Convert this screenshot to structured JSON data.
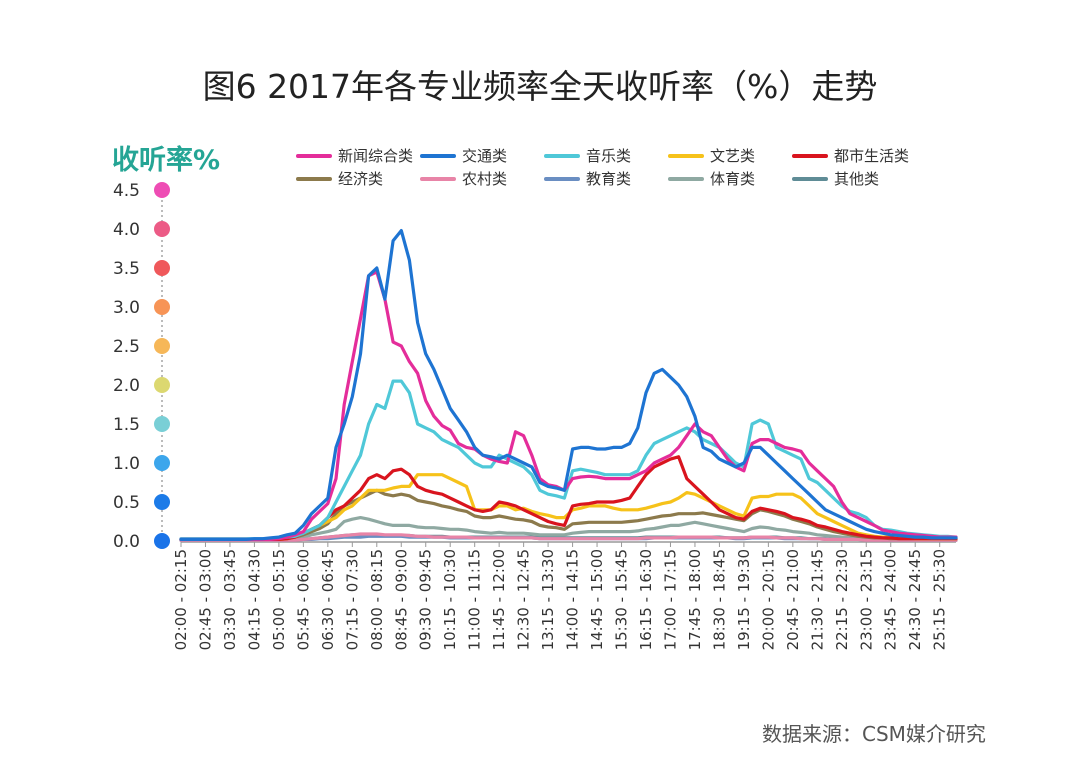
{
  "title": "图6 2017年各专业频率全天收听率（%）走势",
  "source": "数据来源：CSM媒介研究",
  "chart_data": {
    "type": "line",
    "ylabel": "收听率%",
    "ylim": [
      0,
      4.5
    ],
    "yticks": [
      "0.0",
      "0.5",
      "1.0",
      "1.5",
      "2.0",
      "2.5",
      "3.0",
      "3.5",
      "4.0",
      "4.5"
    ],
    "ytick_colors": [
      "#1a73e8",
      "#1c7be8",
      "#3ca6ec",
      "#79cfd6",
      "#dcd870",
      "#f6b758",
      "#f79456",
      "#ef585b",
      "#ec5b86",
      "#ee4db4"
    ],
    "xticks": [
      "02:00 - 02:15",
      "02:45 - 03:00",
      "03:30 - 03:45",
      "04:15 - 04:30",
      "05:00 - 05:15",
      "05:45 - 06:00",
      "06:30 - 06:45",
      "07:15 - 07:30",
      "08:00 - 08:15",
      "08:45 - 09:00",
      "09:30 - 09:45",
      "10:15 - 10:30",
      "11:00 - 11:15",
      "11:45 - 12:00",
      "12:30 - 12:45",
      "13:15 - 13:30",
      "14:00 - 14:15",
      "14:45 - 15:00",
      "15:30 - 15:45",
      "16:15 - 16:30",
      "17:00 - 17:15",
      "17:45 - 18:00",
      "18:30 - 18:45",
      "19:15 - 19:30",
      "20:00 - 20:15",
      "20:45 - 21:00",
      "21:30 - 21:45",
      "22:15 - 22:30",
      "23:00 - 23:15",
      "23:45 - 24:00",
      "24:30 - 24:45",
      "25:15 - 25:30"
    ],
    "x_description": "96 quarter-hour slots from 02:00 to 26:00",
    "series": [
      {
        "name": "新闻综合类",
        "color": "#e42d9a",
        "values": [
          0.02,
          0.02,
          0.02,
          0.02,
          0.02,
          0.02,
          0.02,
          0.02,
          0.02,
          0.02,
          0.02,
          0.02,
          0.03,
          0.05,
          0.08,
          0.12,
          0.28,
          0.38,
          0.48,
          0.8,
          1.75,
          2.3,
          2.85,
          3.4,
          3.45,
          3.1,
          2.55,
          2.5,
          2.3,
          2.15,
          1.8,
          1.6,
          1.48,
          1.42,
          1.25,
          1.2,
          1.18,
          1.1,
          1.05,
          1.02,
          1.0,
          1.4,
          1.35,
          1.1,
          0.8,
          0.72,
          0.7,
          0.65,
          0.8,
          0.82,
          0.83,
          0.82,
          0.8,
          0.8,
          0.8,
          0.8,
          0.85,
          0.9,
          1.0,
          1.05,
          1.1,
          1.2,
          1.35,
          1.5,
          1.4,
          1.35,
          1.2,
          1.05,
          0.95,
          0.9,
          1.25,
          1.3,
          1.3,
          1.25,
          1.2,
          1.18,
          1.15,
          1.0,
          0.9,
          0.8,
          0.7,
          0.5,
          0.35,
          0.3,
          0.25,
          0.2,
          0.14,
          0.12,
          0.1,
          0.09,
          0.08,
          0.07,
          0.06,
          0.05,
          0.05,
          0.05
        ]
      },
      {
        "name": "交通类",
        "color": "#1e74d2",
        "values": [
          0.02,
          0.02,
          0.02,
          0.02,
          0.02,
          0.02,
          0.02,
          0.02,
          0.02,
          0.03,
          0.03,
          0.04,
          0.05,
          0.08,
          0.1,
          0.2,
          0.35,
          0.45,
          0.55,
          1.2,
          1.5,
          1.85,
          2.4,
          3.4,
          3.5,
          3.1,
          3.85,
          3.98,
          3.6,
          2.8,
          2.4,
          2.2,
          1.95,
          1.7,
          1.55,
          1.4,
          1.2,
          1.1,
          1.08,
          1.05,
          1.1,
          1.05,
          1.0,
          0.95,
          0.75,
          0.7,
          0.68,
          0.65,
          1.18,
          1.2,
          1.2,
          1.18,
          1.18,
          1.2,
          1.2,
          1.25,
          1.45,
          1.9,
          2.15,
          2.2,
          2.1,
          2.0,
          1.85,
          1.6,
          1.2,
          1.15,
          1.05,
          1.0,
          0.95,
          1.0,
          1.2,
          1.2,
          1.1,
          1.0,
          0.9,
          0.8,
          0.7,
          0.6,
          0.5,
          0.4,
          0.35,
          0.3,
          0.25,
          0.2,
          0.15,
          0.12,
          0.1,
          0.08,
          0.07,
          0.06,
          0.05,
          0.05,
          0.04,
          0.04,
          0.04,
          0.04
        ]
      },
      {
        "name": "音乐类",
        "color": "#4fc8d8",
        "values": [
          0.03,
          0.03,
          0.03,
          0.03,
          0.03,
          0.03,
          0.03,
          0.03,
          0.03,
          0.03,
          0.03,
          0.03,
          0.04,
          0.05,
          0.06,
          0.1,
          0.15,
          0.2,
          0.3,
          0.5,
          0.7,
          0.9,
          1.1,
          1.5,
          1.75,
          1.7,
          2.05,
          2.05,
          1.9,
          1.5,
          1.45,
          1.4,
          1.3,
          1.25,
          1.2,
          1.1,
          1.0,
          0.95,
          0.95,
          1.1,
          1.05,
          1.0,
          0.95,
          0.85,
          0.65,
          0.6,
          0.58,
          0.55,
          0.9,
          0.92,
          0.9,
          0.88,
          0.85,
          0.85,
          0.85,
          0.85,
          0.9,
          1.1,
          1.25,
          1.3,
          1.35,
          1.4,
          1.45,
          1.4,
          1.3,
          1.25,
          1.2,
          1.1,
          1.0,
          0.95,
          1.5,
          1.55,
          1.5,
          1.2,
          1.15,
          1.1,
          1.05,
          0.8,
          0.75,
          0.65,
          0.55,
          0.45,
          0.38,
          0.35,
          0.3,
          0.2,
          0.15,
          0.14,
          0.12,
          0.1,
          0.09,
          0.08,
          0.07,
          0.06,
          0.06,
          0.05
        ]
      },
      {
        "name": "文艺类",
        "color": "#f6c21a",
        "values": [
          0.02,
          0.02,
          0.02,
          0.02,
          0.02,
          0.02,
          0.02,
          0.02,
          0.02,
          0.02,
          0.02,
          0.02,
          0.02,
          0.03,
          0.05,
          0.1,
          0.15,
          0.2,
          0.25,
          0.3,
          0.4,
          0.45,
          0.55,
          0.65,
          0.65,
          0.65,
          0.68,
          0.7,
          0.7,
          0.85,
          0.85,
          0.85,
          0.85,
          0.8,
          0.75,
          0.7,
          0.4,
          0.4,
          0.4,
          0.45,
          0.45,
          0.4,
          0.42,
          0.38,
          0.35,
          0.33,
          0.3,
          0.3,
          0.4,
          0.42,
          0.45,
          0.45,
          0.45,
          0.42,
          0.4,
          0.4,
          0.4,
          0.42,
          0.45,
          0.48,
          0.5,
          0.55,
          0.62,
          0.6,
          0.55,
          0.5,
          0.45,
          0.4,
          0.35,
          0.32,
          0.55,
          0.57,
          0.57,
          0.6,
          0.6,
          0.6,
          0.55,
          0.45,
          0.35,
          0.3,
          0.25,
          0.2,
          0.15,
          0.1,
          0.08,
          0.06,
          0.05,
          0.05,
          0.04,
          0.04,
          0.03,
          0.03,
          0.03,
          0.03,
          0.03,
          0.03
        ]
      },
      {
        "name": "都市生活类",
        "color": "#d9141e",
        "values": [
          0.02,
          0.02,
          0.02,
          0.02,
          0.02,
          0.02,
          0.02,
          0.02,
          0.02,
          0.02,
          0.02,
          0.02,
          0.02,
          0.03,
          0.05,
          0.1,
          0.15,
          0.2,
          0.3,
          0.4,
          0.45,
          0.55,
          0.65,
          0.8,
          0.85,
          0.8,
          0.9,
          0.92,
          0.85,
          0.7,
          0.65,
          0.62,
          0.6,
          0.55,
          0.5,
          0.45,
          0.4,
          0.38,
          0.4,
          0.5,
          0.48,
          0.45,
          0.4,
          0.35,
          0.3,
          0.25,
          0.22,
          0.2,
          0.45,
          0.47,
          0.48,
          0.5,
          0.5,
          0.5,
          0.52,
          0.55,
          0.7,
          0.85,
          0.95,
          1.0,
          1.05,
          1.08,
          0.8,
          0.7,
          0.6,
          0.5,
          0.4,
          0.35,
          0.3,
          0.28,
          0.38,
          0.42,
          0.4,
          0.38,
          0.35,
          0.3,
          0.28,
          0.25,
          0.2,
          0.18,
          0.15,
          0.12,
          0.1,
          0.08,
          0.06,
          0.05,
          0.04,
          0.04,
          0.03,
          0.03,
          0.03,
          0.03,
          0.03,
          0.03,
          0.03,
          0.03
        ]
      },
      {
        "name": "经济类",
        "color": "#8c7a4c",
        "values": [
          0.02,
          0.02,
          0.02,
          0.02,
          0.02,
          0.02,
          0.02,
          0.02,
          0.02,
          0.02,
          0.02,
          0.02,
          0.02,
          0.03,
          0.05,
          0.08,
          0.12,
          0.16,
          0.22,
          0.35,
          0.45,
          0.5,
          0.55,
          0.6,
          0.65,
          0.6,
          0.58,
          0.6,
          0.58,
          0.52,
          0.5,
          0.48,
          0.45,
          0.43,
          0.4,
          0.38,
          0.32,
          0.3,
          0.3,
          0.32,
          0.3,
          0.28,
          0.27,
          0.25,
          0.2,
          0.18,
          0.17,
          0.15,
          0.22,
          0.23,
          0.24,
          0.24,
          0.24,
          0.24,
          0.24,
          0.25,
          0.26,
          0.28,
          0.3,
          0.32,
          0.33,
          0.35,
          0.35,
          0.35,
          0.36,
          0.34,
          0.32,
          0.3,
          0.28,
          0.26,
          0.35,
          0.4,
          0.38,
          0.35,
          0.32,
          0.28,
          0.25,
          0.22,
          0.18,
          0.15,
          0.12,
          0.1,
          0.08,
          0.06,
          0.05,
          0.04,
          0.04,
          0.03,
          0.03,
          0.03,
          0.03,
          0.03,
          0.03,
          0.03,
          0.03,
          0.03
        ]
      },
      {
        "name": "农村类",
        "color": "#e884a7",
        "values": [
          0.01,
          0.01,
          0.01,
          0.01,
          0.01,
          0.01,
          0.01,
          0.01,
          0.01,
          0.01,
          0.01,
          0.01,
          0.01,
          0.01,
          0.01,
          0.02,
          0.03,
          0.04,
          0.05,
          0.06,
          0.07,
          0.08,
          0.09,
          0.09,
          0.09,
          0.08,
          0.08,
          0.08,
          0.07,
          0.06,
          0.06,
          0.05,
          0.05,
          0.05,
          0.05,
          0.05,
          0.04,
          0.04,
          0.04,
          0.04,
          0.04,
          0.04,
          0.04,
          0.04,
          0.03,
          0.03,
          0.03,
          0.03,
          0.03,
          0.03,
          0.03,
          0.03,
          0.03,
          0.03,
          0.03,
          0.03,
          0.03,
          0.04,
          0.04,
          0.04,
          0.04,
          0.05,
          0.05,
          0.05,
          0.05,
          0.05,
          0.04,
          0.04,
          0.04,
          0.04,
          0.05,
          0.05,
          0.05,
          0.04,
          0.04,
          0.04,
          0.03,
          0.03,
          0.03,
          0.02,
          0.02,
          0.02,
          0.02,
          0.02,
          0.01,
          0.01,
          0.01,
          0.01,
          0.01,
          0.01,
          0.01,
          0.01,
          0.01,
          0.01,
          0.01,
          0.01
        ]
      },
      {
        "name": "教育类",
        "color": "#6a8ec2",
        "values": [
          0.01,
          0.01,
          0.01,
          0.01,
          0.01,
          0.01,
          0.01,
          0.01,
          0.01,
          0.01,
          0.01,
          0.01,
          0.01,
          0.01,
          0.01,
          0.02,
          0.02,
          0.03,
          0.03,
          0.04,
          0.05,
          0.05,
          0.05,
          0.06,
          0.06,
          0.06,
          0.06,
          0.06,
          0.05,
          0.05,
          0.05,
          0.05,
          0.05,
          0.04,
          0.04,
          0.04,
          0.04,
          0.04,
          0.04,
          0.04,
          0.04,
          0.04,
          0.04,
          0.04,
          0.03,
          0.03,
          0.03,
          0.03,
          0.03,
          0.03,
          0.03,
          0.03,
          0.03,
          0.03,
          0.03,
          0.03,
          0.03,
          0.03,
          0.04,
          0.04,
          0.04,
          0.04,
          0.04,
          0.04,
          0.04,
          0.04,
          0.04,
          0.04,
          0.03,
          0.03,
          0.04,
          0.04,
          0.04,
          0.04,
          0.03,
          0.03,
          0.03,
          0.03,
          0.03,
          0.02,
          0.02,
          0.02,
          0.02,
          0.02,
          0.01,
          0.01,
          0.01,
          0.01,
          0.01,
          0.01,
          0.01,
          0.01,
          0.01,
          0.01,
          0.01,
          0.01
        ]
      },
      {
        "name": "体育类",
        "color": "#8fa9a2",
        "values": [
          0.02,
          0.02,
          0.02,
          0.02,
          0.02,
          0.02,
          0.02,
          0.02,
          0.02,
          0.02,
          0.02,
          0.02,
          0.02,
          0.02,
          0.03,
          0.05,
          0.08,
          0.1,
          0.12,
          0.15,
          0.25,
          0.28,
          0.3,
          0.28,
          0.25,
          0.22,
          0.2,
          0.2,
          0.2,
          0.18,
          0.17,
          0.17,
          0.16,
          0.15,
          0.15,
          0.14,
          0.12,
          0.11,
          0.1,
          0.11,
          0.1,
          0.1,
          0.1,
          0.09,
          0.08,
          0.08,
          0.08,
          0.08,
          0.1,
          0.11,
          0.12,
          0.12,
          0.12,
          0.12,
          0.12,
          0.12,
          0.13,
          0.15,
          0.16,
          0.18,
          0.2,
          0.2,
          0.22,
          0.24,
          0.22,
          0.2,
          0.18,
          0.16,
          0.14,
          0.12,
          0.16,
          0.18,
          0.17,
          0.15,
          0.14,
          0.12,
          0.11,
          0.1,
          0.08,
          0.07,
          0.06,
          0.05,
          0.04,
          0.04,
          0.03,
          0.03,
          0.03,
          0.03,
          0.02,
          0.02,
          0.02,
          0.02,
          0.02,
          0.02,
          0.02,
          0.02
        ]
      },
      {
        "name": "其他类",
        "color": "#5f8c96",
        "values": [
          0.01,
          0.01,
          0.01,
          0.01,
          0.01,
          0.01,
          0.01,
          0.01,
          0.01,
          0.01,
          0.01,
          0.01,
          0.01,
          0.01,
          0.02,
          0.02,
          0.03,
          0.04,
          0.05,
          0.06,
          0.07,
          0.08,
          0.08,
          0.08,
          0.08,
          0.07,
          0.07,
          0.07,
          0.07,
          0.06,
          0.06,
          0.06,
          0.06,
          0.05,
          0.05,
          0.05,
          0.05,
          0.05,
          0.05,
          0.05,
          0.05,
          0.05,
          0.05,
          0.05,
          0.04,
          0.04,
          0.04,
          0.04,
          0.04,
          0.04,
          0.04,
          0.04,
          0.04,
          0.04,
          0.04,
          0.04,
          0.04,
          0.05,
          0.05,
          0.05,
          0.05,
          0.05,
          0.05,
          0.05,
          0.05,
          0.05,
          0.05,
          0.04,
          0.04,
          0.04,
          0.05,
          0.05,
          0.05,
          0.05,
          0.04,
          0.04,
          0.04,
          0.03,
          0.03,
          0.03,
          0.02,
          0.02,
          0.02,
          0.02,
          0.02,
          0.02,
          0.01,
          0.01,
          0.01,
          0.01,
          0.01,
          0.01,
          0.01,
          0.01,
          0.01,
          0.01
        ]
      }
    ]
  }
}
